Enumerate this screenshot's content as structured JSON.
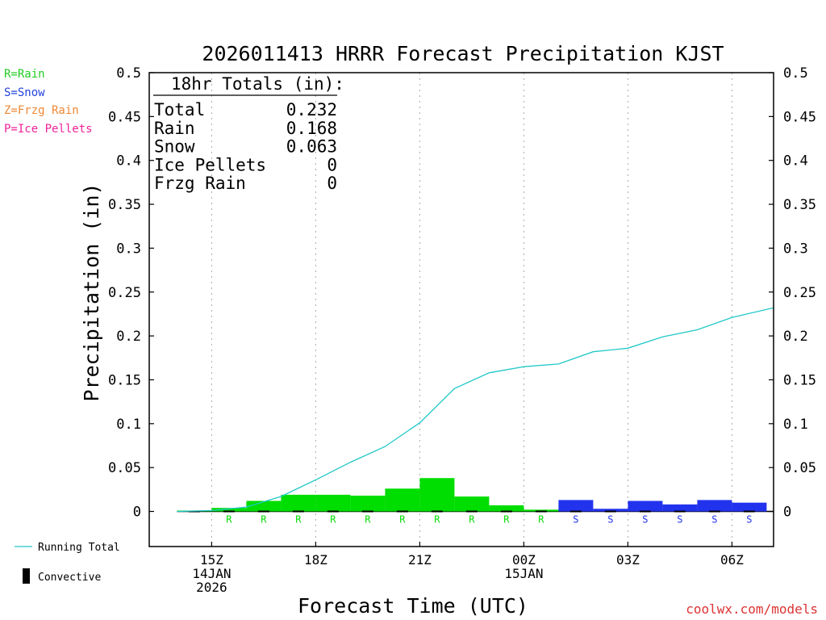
{
  "title": "2026011413 HRRR Forecast Precipitation KJST",
  "legend_types": [
    {
      "text": "R=Rain",
      "color": "#22cc22"
    },
    {
      "text": "S=Snow",
      "color": "#2244dd"
    },
    {
      "text": "Z=Frzg Rain",
      "color": "#ee8833"
    },
    {
      "text": "P=Ice Pellets",
      "color": "#ee2299"
    }
  ],
  "totals": {
    "header": "18hr Totals (in):",
    "rows": [
      {
        "label": "Total",
        "value": "0.232"
      },
      {
        "label": "Rain",
        "value": "0.168"
      },
      {
        "label": "Snow",
        "value": "0.063"
      },
      {
        "label": "Ice Pellets",
        "value": "0"
      },
      {
        "label": "Frzg Rain",
        "value": "0"
      }
    ]
  },
  "bottom_legend": {
    "running_total": "Running Total",
    "convective": "Convective"
  },
  "credit": "coolwx.com/models",
  "colors": {
    "rain": "#00dd00",
    "snow": "#2233ee",
    "running_total": "#22c8c8",
    "credit": "#dd3333"
  },
  "chart_data": {
    "type": "bar",
    "title": "2026011413 HRRR Forecast Precipitation KJST",
    "xlabel": "Forecast Time (UTC)",
    "ylabel": "Precipitation (in)",
    "ylim": [
      -0.04,
      0.5
    ],
    "y_ticks": [
      {
        "value": 0,
        "label": "0"
      },
      {
        "value": 0.05,
        "label": "0.05"
      },
      {
        "value": 0.1,
        "label": "0.1"
      },
      {
        "value": 0.15,
        "label": "0.15"
      },
      {
        "value": 0.2,
        "label": "0.2"
      },
      {
        "value": 0.25,
        "label": "0.25"
      },
      {
        "value": 0.3,
        "label": "0.3"
      },
      {
        "value": 0.35,
        "label": "0.35"
      },
      {
        "value": 0.4,
        "label": "0.4"
      },
      {
        "value": 0.45,
        "label": "0.45"
      },
      {
        "value": 0.5,
        "label": "0.5"
      }
    ],
    "x_range_hours": [
      13.2,
      31.2
    ],
    "x_ticks": [
      {
        "hour": 15,
        "lines": [
          "15Z",
          "14JAN",
          "2026"
        ]
      },
      {
        "hour": 18,
        "lines": [
          "18Z"
        ]
      },
      {
        "hour": 21,
        "lines": [
          "21Z"
        ]
      },
      {
        "hour": 24,
        "lines": [
          "00Z",
          "15JAN"
        ]
      },
      {
        "hour": 27,
        "lines": [
          "03Z"
        ]
      },
      {
        "hour": 30,
        "lines": [
          "06Z"
        ]
      }
    ],
    "bars": [
      {
        "hour": 15,
        "value": 0.001,
        "type": "R"
      },
      {
        "hour": 16,
        "value": 0.004,
        "type": "R"
      },
      {
        "hour": 17,
        "value": 0.012,
        "type": "R"
      },
      {
        "hour": 18,
        "value": 0.019,
        "type": "R"
      },
      {
        "hour": 19,
        "value": 0.019,
        "type": "R"
      },
      {
        "hour": 20,
        "value": 0.018,
        "type": "R"
      },
      {
        "hour": 21,
        "value": 0.026,
        "type": "R"
      },
      {
        "hour": 22,
        "value": 0.038,
        "type": "R"
      },
      {
        "hour": 23,
        "value": 0.017,
        "type": "R"
      },
      {
        "hour": 24,
        "value": 0.007,
        "type": "R"
      },
      {
        "hour": 25,
        "value": 0.002,
        "type": "R"
      },
      {
        "hour": 26,
        "value": 0.013,
        "type": "S"
      },
      {
        "hour": 27,
        "value": 0.003,
        "type": "S"
      },
      {
        "hour": 28,
        "value": 0.012,
        "type": "S"
      },
      {
        "hour": 29,
        "value": 0.008,
        "type": "S"
      },
      {
        "hour": 30,
        "value": 0.013,
        "type": "S"
      },
      {
        "hour": 31,
        "value": 0.01,
        "type": "S"
      }
    ],
    "type_labels": [
      {
        "hour": 16,
        "letter": "R"
      },
      {
        "hour": 17,
        "letter": "R"
      },
      {
        "hour": 18,
        "letter": "R"
      },
      {
        "hour": 19,
        "letter": "R"
      },
      {
        "hour": 20,
        "letter": "R"
      },
      {
        "hour": 21,
        "letter": "R"
      },
      {
        "hour": 22,
        "letter": "R"
      },
      {
        "hour": 23,
        "letter": "R"
      },
      {
        "hour": 24,
        "letter": "R"
      },
      {
        "hour": 25,
        "letter": "R"
      },
      {
        "hour": 26,
        "letter": "S"
      },
      {
        "hour": 27,
        "letter": "S"
      },
      {
        "hour": 28,
        "letter": "S"
      },
      {
        "hour": 29,
        "letter": "S"
      },
      {
        "hour": 30,
        "letter": "S"
      },
      {
        "hour": 31,
        "letter": "S"
      }
    ],
    "running_total": {
      "name": "Running Total",
      "points": [
        [
          14,
          0
        ],
        [
          15,
          0.001
        ],
        [
          16,
          0.005
        ],
        [
          17,
          0.017
        ],
        [
          18,
          0.036
        ],
        [
          19,
          0.056
        ],
        [
          20,
          0.074
        ],
        [
          21,
          0.101
        ],
        [
          22,
          0.14
        ],
        [
          23,
          0.158
        ],
        [
          24,
          0.165
        ],
        [
          25,
          0.168
        ],
        [
          26,
          0.182
        ],
        [
          27,
          0.186
        ],
        [
          28,
          0.199
        ],
        [
          29,
          0.207
        ],
        [
          30,
          0.221
        ],
        [
          31.2,
          0.232
        ]
      ]
    },
    "convective": {
      "name": "Convective",
      "values": [
        0,
        0,
        0,
        0,
        0,
        0,
        0,
        0,
        0,
        0,
        0,
        0,
        0,
        0,
        0,
        0,
        0
      ]
    }
  }
}
